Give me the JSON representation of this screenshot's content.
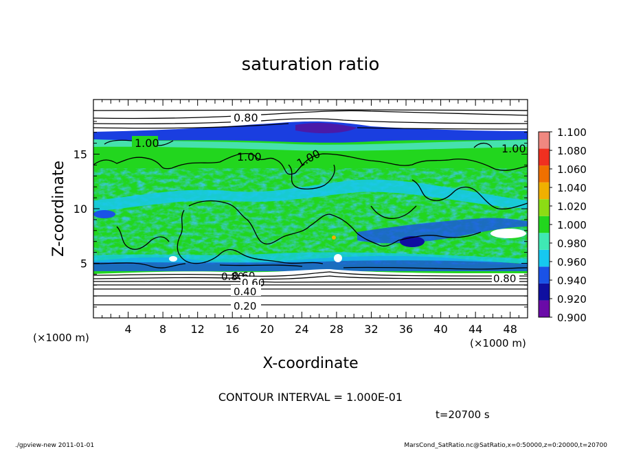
{
  "chart_data": {
    "type": "heatmap",
    "title": "saturation ratio",
    "xlabel": "X-coordinate",
    "ylabel": "Z-coordinate",
    "x_unit_label": "(×1000 m)",
    "y_unit_label": "(×1000 m)",
    "xlim": [
      0,
      50
    ],
    "ylim": [
      0,
      20
    ],
    "x_ticks": [
      4,
      8,
      12,
      16,
      20,
      24,
      28,
      32,
      36,
      40,
      44,
      48
    ],
    "y_ticks": [
      5,
      10,
      15
    ],
    "colorbar": {
      "levels": [
        0.9,
        0.92,
        0.94,
        0.96,
        0.98,
        1.0,
        1.02,
        1.04,
        1.06,
        1.08,
        1.1
      ],
      "labels": [
        "0.900",
        "0.920",
        "0.940",
        "0.960",
        "0.980",
        "1.000",
        "1.020",
        "1.040",
        "1.060",
        "1.080",
        "1.100"
      ],
      "colors": [
        "#6a0aa8",
        "#0f0fa0",
        "#1a52e6",
        "#16c8f0",
        "#3fe8b4",
        "#22d61e",
        "#8cdc14",
        "#f0b000",
        "#f07000",
        "#f03020",
        "#f08880"
      ]
    },
    "contour_labels": [
      "0.80",
      "1.00",
      "1.00",
      "1.00",
      "1.00",
      "0.80",
      "0.60",
      "0.60",
      "0.40",
      "0.20",
      "0.80"
    ],
    "contour_interval_text": "CONTOUR INTERVAL = 1.000E-01",
    "time_text": "t=20700 s"
  },
  "footer": {
    "left": "./gpview-new   2011-01-01",
    "right": "MarsCond_SatRatio.nc@SatRatio,x=0:50000,z=0:20000,t=20700"
  }
}
